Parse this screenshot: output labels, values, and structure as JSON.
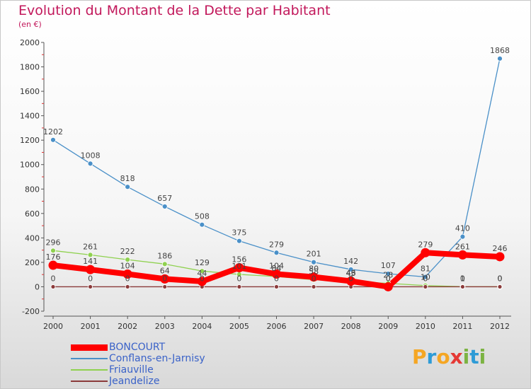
{
  "title": "Evolution du Montant de la Dette par Habitant",
  "subtitle": "(en €)",
  "logo": {
    "text": "Proxiti",
    "letters": [
      "P",
      "r",
      "o",
      "x",
      "i",
      "t",
      "i"
    ],
    "colors": [
      "#f5a623",
      "#2e9bd6",
      "#f5a623",
      "#e53935",
      "#7cb342",
      "#2e9bd6",
      "#7cb342"
    ]
  },
  "chart_data": {
    "type": "line",
    "title": "Evolution du Montant de la Dette par Habitant",
    "ylabel": "(en €)",
    "categories": [
      "2000",
      "2001",
      "2002",
      "2003",
      "2004",
      "2005",
      "2006",
      "2007",
      "2008",
      "2009",
      "2010",
      "2011",
      "2012"
    ],
    "ylim": [
      -200,
      2000
    ],
    "yticks": [
      -200,
      0,
      200,
      400,
      600,
      800,
      1000,
      1200,
      1400,
      1600,
      1800,
      2000
    ],
    "grid": false,
    "legend_position": "bottom-left",
    "series": [
      {
        "name": "BONCOURT",
        "color": "#ff0000",
        "values": [
          176,
          141,
          104,
          64,
          44,
          156,
          104,
          80,
          46,
          0,
          279,
          261,
          246
        ],
        "labels": [
          "176",
          "141",
          "104",
          "64",
          "44",
          "156",
          "104",
          "80",
          "46",
          "0",
          "279",
          "261",
          "246"
        ]
      },
      {
        "name": "Conflans-en-Jarnisy",
        "color": "#4a90c8",
        "values": [
          1202,
          1008,
          818,
          657,
          508,
          375,
          279,
          201,
          142,
          107,
          81,
          410,
          1868
        ],
        "labels": [
          "1202",
          "1008",
          "818",
          "657",
          "508",
          "375",
          "279",
          "201",
          "142",
          "107",
          "81",
          "410",
          "1868"
        ]
      },
      {
        "name": "Friauville",
        "color": "#8fd14f",
        "values": [
          296,
          261,
          222,
          186,
          129,
          101,
          84,
          58,
          43,
          28,
          10,
          1,
          0
        ],
        "labels": [
          "296",
          "261",
          "222",
          "186",
          "129",
          "101",
          "84",
          "58",
          "43",
          "28",
          "10",
          "1",
          "0"
        ]
      },
      {
        "name": "Jeandelize",
        "color": "#8b3a3a",
        "values": [
          0,
          0,
          0,
          0,
          0,
          0,
          0,
          0,
          0,
          0,
          0,
          0,
          0
        ],
        "labels": [
          "0",
          "0",
          "0",
          "0",
          "0",
          "0",
          "0",
          "0",
          "0",
          "0",
          "0",
          "0",
          "0"
        ]
      }
    ]
  }
}
